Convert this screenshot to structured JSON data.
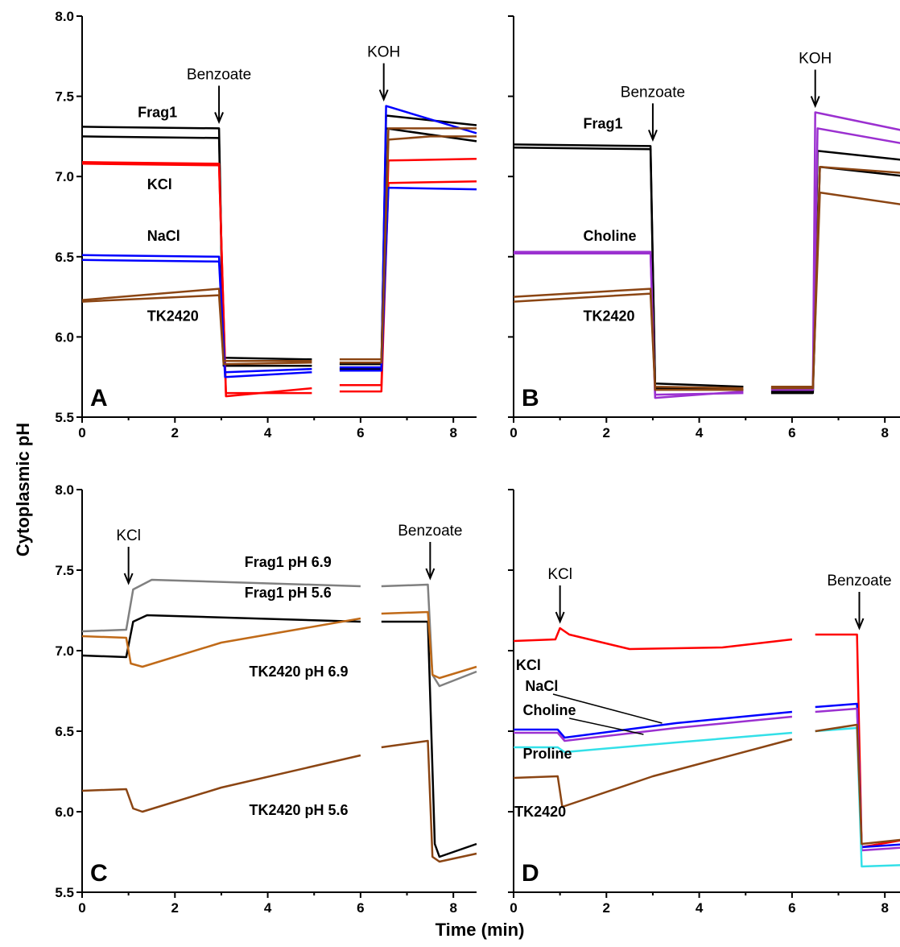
{
  "figure": {
    "ylabel": "Cytoplasmic pH",
    "xlabel": "Time (min)"
  },
  "chart_data": [
    {
      "type": "line",
      "panel": "A",
      "xlim": [
        0,
        8.5
      ],
      "ylim": [
        5.5,
        8.0
      ],
      "xticks": [
        "0",
        "2",
        "4",
        "6",
        "8"
      ],
      "yticks": [
        "5.5",
        "6.0",
        "6.5",
        "7.0",
        "7.5",
        "8.0"
      ],
      "arrows": [
        {
          "label": "Benzoate",
          "x": 2.95
        },
        {
          "label": "KOH",
          "x": 6.5
        }
      ],
      "gap": [
        4.95,
        5.55
      ],
      "labels": [
        {
          "text": "Frag1",
          "x": 1.2,
          "y": 7.37
        },
        {
          "text": "KCl",
          "x": 1.4,
          "y": 6.92
        },
        {
          "text": "NaCl",
          "x": 1.4,
          "y": 6.6
        },
        {
          "text": "TK2420",
          "x": 1.4,
          "y": 6.1
        }
      ],
      "series": [
        {
          "color": "#000000",
          "points": [
            [
              0,
              7.31
            ],
            [
              2.95,
              7.3
            ],
            [
              3.05,
              5.87
            ],
            [
              4.95,
              5.86
            ],
            [
              5.55,
              5.83
            ],
            [
              6.45,
              5.83
            ],
            [
              6.55,
              7.38
            ],
            [
              8.5,
              7.32
            ]
          ]
        },
        {
          "color": "#000000",
          "points": [
            [
              0,
              7.25
            ],
            [
              2.95,
              7.24
            ],
            [
              3.05,
              5.82
            ],
            [
              4.95,
              5.82
            ],
            [
              5.55,
              5.8
            ],
            [
              6.45,
              5.8
            ],
            [
              6.55,
              7.3
            ],
            [
              8.5,
              7.22
            ]
          ]
        },
        {
          "color": "#ff0000",
          "points": [
            [
              0,
              7.09
            ],
            [
              2.95,
              7.08
            ],
            [
              3.1,
              5.63
            ],
            [
              4.95,
              5.68
            ],
            [
              5.55,
              5.7
            ],
            [
              6.45,
              5.7
            ],
            [
              6.6,
              7.1
            ],
            [
              8.5,
              7.11
            ]
          ]
        },
        {
          "color": "#ff0000",
          "points": [
            [
              0,
              7.08
            ],
            [
              2.95,
              7.07
            ],
            [
              3.1,
              5.65
            ],
            [
              4.95,
              5.65
            ],
            [
              5.55,
              5.66
            ],
            [
              6.45,
              5.66
            ],
            [
              6.6,
              6.96
            ],
            [
              8.5,
              6.97
            ]
          ]
        },
        {
          "color": "#0000ff",
          "points": [
            [
              0,
              6.51
            ],
            [
              2.95,
              6.5
            ],
            [
              3.08,
              5.78
            ],
            [
              4.95,
              5.8
            ],
            [
              5.55,
              5.81
            ],
            [
              6.45,
              5.81
            ],
            [
              6.55,
              7.44
            ],
            [
              8.5,
              7.27
            ]
          ]
        },
        {
          "color": "#0000ff",
          "points": [
            [
              0,
              6.48
            ],
            [
              2.95,
              6.47
            ],
            [
              3.08,
              5.75
            ],
            [
              4.95,
              5.78
            ],
            [
              5.55,
              5.79
            ],
            [
              6.45,
              5.79
            ],
            [
              6.6,
              6.93
            ],
            [
              8.5,
              6.92
            ]
          ]
        },
        {
          "color": "#8b4513",
          "points": [
            [
              0,
              6.23
            ],
            [
              2.95,
              6.3
            ],
            [
              3.05,
              5.85
            ],
            [
              4.95,
              5.85
            ],
            [
              5.55,
              5.86
            ],
            [
              6.45,
              5.86
            ],
            [
              6.6,
              7.3
            ],
            [
              8.5,
              7.3
            ]
          ]
        },
        {
          "color": "#8b4513",
          "points": [
            [
              0,
              6.22
            ],
            [
              2.95,
              6.26
            ],
            [
              3.05,
              5.83
            ],
            [
              4.95,
              5.84
            ],
            [
              5.55,
              5.84
            ],
            [
              6.45,
              5.84
            ],
            [
              6.6,
              7.23
            ],
            [
              7.5,
              7.25
            ],
            [
              8.5,
              7.25
            ]
          ]
        }
      ]
    },
    {
      "type": "line",
      "panel": "B",
      "xlim": [
        0,
        8.5
      ],
      "ylim": [
        5.5,
        8.0
      ],
      "xticks": [
        "0",
        "2",
        "4",
        "6",
        "8"
      ],
      "yticks": [],
      "arrows": [
        {
          "label": "Benzoate",
          "x": 3.0
        },
        {
          "label": "KOH",
          "x": 6.5
        }
      ],
      "gap": [
        4.95,
        5.55
      ],
      "labels": [
        {
          "text": "Frag1",
          "x": 1.5,
          "y": 7.3
        },
        {
          "text": "Choline",
          "x": 1.5,
          "y": 6.6
        },
        {
          "text": "TK2420",
          "x": 1.5,
          "y": 6.1
        }
      ],
      "series": [
        {
          "color": "#000000",
          "points": [
            [
              0,
              7.2
            ],
            [
              2.95,
              7.19
            ],
            [
              3.05,
              5.71
            ],
            [
              4.95,
              5.69
            ],
            [
              5.55,
              5.66
            ],
            [
              6.45,
              5.66
            ],
            [
              6.55,
              7.16
            ],
            [
              8.5,
              7.1
            ]
          ]
        },
        {
          "color": "#000000",
          "points": [
            [
              0,
              7.18
            ],
            [
              2.95,
              7.17
            ],
            [
              3.05,
              5.68
            ],
            [
              4.95,
              5.67
            ],
            [
              5.55,
              5.65
            ],
            [
              6.45,
              5.65
            ],
            [
              6.6,
              7.06
            ],
            [
              8.5,
              7.0
            ]
          ]
        },
        {
          "color": "#9b30d0",
          "points": [
            [
              0,
              6.53
            ],
            [
              2.95,
              6.53
            ],
            [
              3.05,
              5.62
            ],
            [
              4.95,
              5.66
            ],
            [
              5.55,
              5.68
            ],
            [
              6.45,
              5.68
            ],
            [
              6.5,
              7.4
            ],
            [
              8.5,
              7.28
            ]
          ]
        },
        {
          "color": "#9b30d0",
          "points": [
            [
              0,
              6.52
            ],
            [
              2.95,
              6.52
            ],
            [
              3.05,
              5.64
            ],
            [
              4.95,
              5.65
            ],
            [
              5.55,
              5.67
            ],
            [
              6.45,
              5.67
            ],
            [
              6.55,
              7.3
            ],
            [
              8.5,
              7.2
            ]
          ]
        },
        {
          "color": "#8b4513",
          "points": [
            [
              0,
              6.25
            ],
            [
              2.95,
              6.3
            ],
            [
              3.05,
              5.69
            ],
            [
              4.95,
              5.68
            ],
            [
              5.55,
              5.69
            ],
            [
              6.45,
              5.69
            ],
            [
              6.6,
              7.06
            ],
            [
              8.5,
              7.02
            ]
          ]
        },
        {
          "color": "#8b4513",
          "points": [
            [
              0,
              6.22
            ],
            [
              2.95,
              6.27
            ],
            [
              3.05,
              5.67
            ],
            [
              4.95,
              5.67
            ],
            [
              5.55,
              5.68
            ],
            [
              6.45,
              5.68
            ],
            [
              6.6,
              6.9
            ],
            [
              8.5,
              6.82
            ]
          ]
        }
      ]
    },
    {
      "type": "line",
      "panel": "C",
      "xlim": [
        0,
        8.5
      ],
      "ylim": [
        5.5,
        8.0
      ],
      "xticks": [
        "0",
        "2",
        "4",
        "6",
        "8"
      ],
      "yticks": [
        "5.5",
        "6.0",
        "6.5",
        "7.0",
        "7.5",
        "8.0"
      ],
      "arrows": [
        {
          "label": "KCl",
          "x": 1.0
        },
        {
          "label": "Benzoate",
          "x": 7.5
        }
      ],
      "gap": [
        6.0,
        6.45
      ],
      "labels": [
        {
          "text": "Frag1 pH 6.9",
          "x": 3.5,
          "y": 7.52
        },
        {
          "text": "Frag1 pH 5.6",
          "x": 3.5,
          "y": 7.33
        },
        {
          "text": "TK2420 pH 6.9",
          "x": 3.6,
          "y": 6.84
        },
        {
          "text": "TK2420 pH 5.6",
          "x": 3.6,
          "y": 5.98
        }
      ],
      "series": [
        {
          "color": "#808080",
          "points": [
            [
              0,
              7.12
            ],
            [
              0.95,
              7.13
            ],
            [
              1.1,
              7.38
            ],
            [
              1.5,
              7.44
            ],
            [
              6.0,
              7.4
            ],
            [
              6.45,
              7.4
            ],
            [
              7.45,
              7.41
            ],
            [
              7.55,
              6.85
            ],
            [
              7.7,
              6.78
            ],
            [
              8.5,
              6.87
            ]
          ]
        },
        {
          "color": "#000000",
          "points": [
            [
              0,
              6.97
            ],
            [
              0.95,
              6.96
            ],
            [
              1.1,
              7.18
            ],
            [
              1.4,
              7.22
            ],
            [
              6.0,
              7.18
            ],
            [
              6.45,
              7.18
            ],
            [
              7.45,
              7.18
            ],
            [
              7.6,
              5.8
            ],
            [
              7.7,
              5.72
            ],
            [
              8.5,
              5.8
            ]
          ]
        },
        {
          "color": "#c06a18",
          "points": [
            [
              0,
              7.09
            ],
            [
              0.95,
              7.08
            ],
            [
              1.05,
              6.92
            ],
            [
              1.3,
              6.9
            ],
            [
              3.0,
              7.05
            ],
            [
              6.0,
              7.2
            ],
            [
              6.45,
              7.23
            ],
            [
              7.45,
              7.24
            ],
            [
              7.55,
              6.85
            ],
            [
              7.7,
              6.83
            ],
            [
              8.5,
              6.9
            ]
          ]
        },
        {
          "color": "#8b4513",
          "points": [
            [
              0,
              6.13
            ],
            [
              0.95,
              6.14
            ],
            [
              1.1,
              6.02
            ],
            [
              1.3,
              6.0
            ],
            [
              3.0,
              6.15
            ],
            [
              6.0,
              6.35
            ],
            [
              6.45,
              6.4
            ],
            [
              7.45,
              6.44
            ],
            [
              7.55,
              5.72
            ],
            [
              7.7,
              5.69
            ],
            [
              8.5,
              5.74
            ]
          ]
        }
      ]
    },
    {
      "type": "line",
      "panel": "D",
      "xlim": [
        0,
        8.5
      ],
      "ylim": [
        5.5,
        8.0
      ],
      "xticks": [
        "0",
        "2",
        "4",
        "6",
        "8"
      ],
      "yticks": [],
      "arrows": [
        {
          "label": "KCl",
          "x": 1.0
        },
        {
          "label": "Benzoate",
          "x": 7.45
        }
      ],
      "gap": [
        6.0,
        6.5
      ],
      "labels": [
        {
          "text": "KCl",
          "x": 0.05,
          "y": 6.88
        },
        {
          "text": "NaCl",
          "x": 0.25,
          "y": 6.75
        },
        {
          "text": "Choline",
          "x": 0.2,
          "y": 6.6
        },
        {
          "text": "Proline",
          "x": 0.2,
          "y": 6.33
        },
        {
          "text": "TK2420",
          "x": 0.02,
          "y": 5.97
        }
      ],
      "series": [
        {
          "color": "#ff0000",
          "points": [
            [
              0,
              7.06
            ],
            [
              0.9,
              7.07
            ],
            [
              1.0,
              7.14
            ],
            [
              1.2,
              7.1
            ],
            [
              2.5,
              7.01
            ],
            [
              4.5,
              7.02
            ],
            [
              6.0,
              7.07
            ],
            [
              6.5,
              7.1
            ],
            [
              7.4,
              7.1
            ],
            [
              7.5,
              5.78
            ],
            [
              8.5,
              5.83
            ]
          ]
        },
        {
          "color": "#0000ff",
          "points": [
            [
              0,
              6.51
            ],
            [
              0.95,
              6.51
            ],
            [
              1.1,
              6.46
            ],
            [
              3.5,
              6.55
            ],
            [
              6.0,
              6.62
            ],
            [
              6.5,
              6.65
            ],
            [
              7.4,
              6.67
            ],
            [
              7.5,
              5.78
            ],
            [
              8.5,
              5.8
            ]
          ]
        },
        {
          "color": "#9b30d0",
          "points": [
            [
              0,
              6.49
            ],
            [
              0.95,
              6.49
            ],
            [
              1.1,
              6.44
            ],
            [
              3.5,
              6.52
            ],
            [
              6.0,
              6.59
            ],
            [
              6.5,
              6.62
            ],
            [
              7.4,
              6.64
            ],
            [
              7.5,
              5.76
            ],
            [
              8.5,
              5.78
            ]
          ]
        },
        {
          "color": "#33e0e8",
          "points": [
            [
              0,
              6.4
            ],
            [
              0.95,
              6.4
            ],
            [
              1.1,
              6.37
            ],
            [
              3.5,
              6.43
            ],
            [
              6.0,
              6.49
            ],
            [
              6.5,
              6.5
            ],
            [
              7.4,
              6.52
            ],
            [
              7.5,
              5.66
            ],
            [
              8.5,
              5.67
            ]
          ]
        },
        {
          "color": "#8b4513",
          "points": [
            [
              0,
              6.21
            ],
            [
              0.95,
              6.22
            ],
            [
              1.05,
              6.03
            ],
            [
              3.0,
              6.22
            ],
            [
              6.0,
              6.45
            ],
            [
              6.5,
              6.5
            ],
            [
              7.4,
              6.54
            ],
            [
              7.5,
              5.8
            ],
            [
              8.5,
              5.83
            ]
          ]
        }
      ]
    }
  ]
}
